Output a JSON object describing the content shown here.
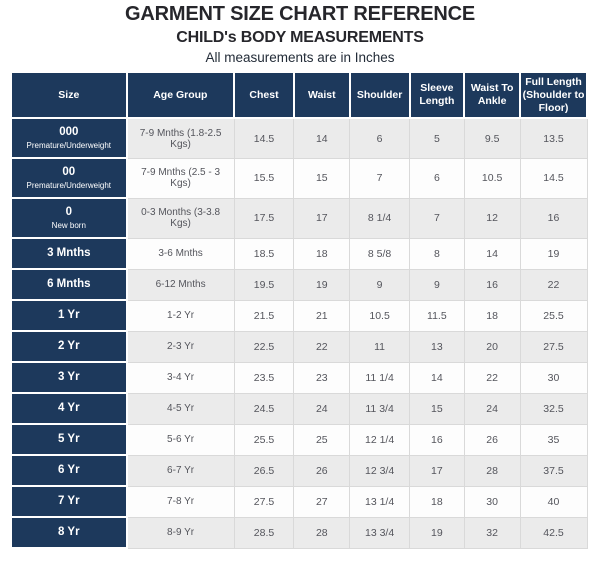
{
  "header": {
    "title": "GARMENT SIZE CHART REFERENCE",
    "subtitle": "CHILD's BODY MEASUREMENTS",
    "note": "All measurements are in Inches"
  },
  "colors": {
    "navy_header": "#1d395c",
    "alt_row_bg": "#ebebeb",
    "plain_row_bg": "#fdfdfd",
    "data_text": "#54555c",
    "title_text": "#26262b",
    "cell_border": "#d9d9d9"
  },
  "chart_data": {
    "type": "table",
    "title": "GARMENT SIZE CHART REFERENCE",
    "subtitle": "CHILD's BODY MEASUREMENTS",
    "note": "All measurements are in Inches",
    "columns": [
      "Size",
      "Age Group",
      "Chest",
      "Waist",
      "Shoulder",
      "Sleeve Length",
      "Waist To Ankle",
      "Full Length (Shoulder to Floor)"
    ],
    "rows": [
      {
        "size": "000",
        "size_sub": "Premature/Underweight",
        "age_group": "7-9 Mnths (1.8-2.5 Kgs)",
        "chest": "14.5",
        "waist": "14",
        "shoulder": "6",
        "sleeve_length": "5",
        "waist_to_ankle": "9.5",
        "full_length": "13.5"
      },
      {
        "size": "00",
        "size_sub": "Premature/Underweight",
        "age_group": "7-9 Mnths (2.5 - 3 Kgs)",
        "chest": "15.5",
        "waist": "15",
        "shoulder": "7",
        "sleeve_length": "6",
        "waist_to_ankle": "10.5",
        "full_length": "14.5"
      },
      {
        "size": "0",
        "size_sub": "New born",
        "age_group": "0-3 Months (3-3.8 Kgs)",
        "chest": "17.5",
        "waist": "17",
        "shoulder": "8 1/4",
        "sleeve_length": "7",
        "waist_to_ankle": "12",
        "full_length": "16"
      },
      {
        "size": "3 Mnths",
        "size_sub": "",
        "age_group": "3-6 Mnths",
        "chest": "18.5",
        "waist": "18",
        "shoulder": "8 5/8",
        "sleeve_length": "8",
        "waist_to_ankle": "14",
        "full_length": "19"
      },
      {
        "size": "6 Mnths",
        "size_sub": "",
        "age_group": "6-12 Mnths",
        "chest": "19.5",
        "waist": "19",
        "shoulder": "9",
        "sleeve_length": "9",
        "waist_to_ankle": "16",
        "full_length": "22"
      },
      {
        "size": "1 Yr",
        "size_sub": "",
        "age_group": "1-2 Yr",
        "chest": "21.5",
        "waist": "21",
        "shoulder": "10.5",
        "sleeve_length": "11.5",
        "waist_to_ankle": "18",
        "full_length": "25.5"
      },
      {
        "size": "2 Yr",
        "size_sub": "",
        "age_group": "2-3 Yr",
        "chest": "22.5",
        "waist": "22",
        "shoulder": "11",
        "sleeve_length": "13",
        "waist_to_ankle": "20",
        "full_length": "27.5"
      },
      {
        "size": "3 Yr",
        "size_sub": "",
        "age_group": "3-4 Yr",
        "chest": "23.5",
        "waist": "23",
        "shoulder": "11 1/4",
        "sleeve_length": "14",
        "waist_to_ankle": "22",
        "full_length": "30"
      },
      {
        "size": "4 Yr",
        "size_sub": "",
        "age_group": "4-5 Yr",
        "chest": "24.5",
        "waist": "24",
        "shoulder": "11 3/4",
        "sleeve_length": "15",
        "waist_to_ankle": "24",
        "full_length": "32.5"
      },
      {
        "size": "5 Yr",
        "size_sub": "",
        "age_group": "5-6 Yr",
        "chest": "25.5",
        "waist": "25",
        "shoulder": "12 1/4",
        "sleeve_length": "16",
        "waist_to_ankle": "26",
        "full_length": "35"
      },
      {
        "size": "6 Yr",
        "size_sub": "",
        "age_group": "6-7 Yr",
        "chest": "26.5",
        "waist": "26",
        "shoulder": "12 3/4",
        "sleeve_length": "17",
        "waist_to_ankle": "28",
        "full_length": "37.5"
      },
      {
        "size": "7 Yr",
        "size_sub": "",
        "age_group": "7-8 Yr",
        "chest": "27.5",
        "waist": "27",
        "shoulder": "13 1/4",
        "sleeve_length": "18",
        "waist_to_ankle": "30",
        "full_length": "40"
      },
      {
        "size": "8 Yr",
        "size_sub": "",
        "age_group": "8-9 Yr",
        "chest": "28.5",
        "waist": "28",
        "shoulder": "13 3/4",
        "sleeve_length": "19",
        "waist_to_ankle": "32",
        "full_length": "42.5"
      }
    ]
  }
}
